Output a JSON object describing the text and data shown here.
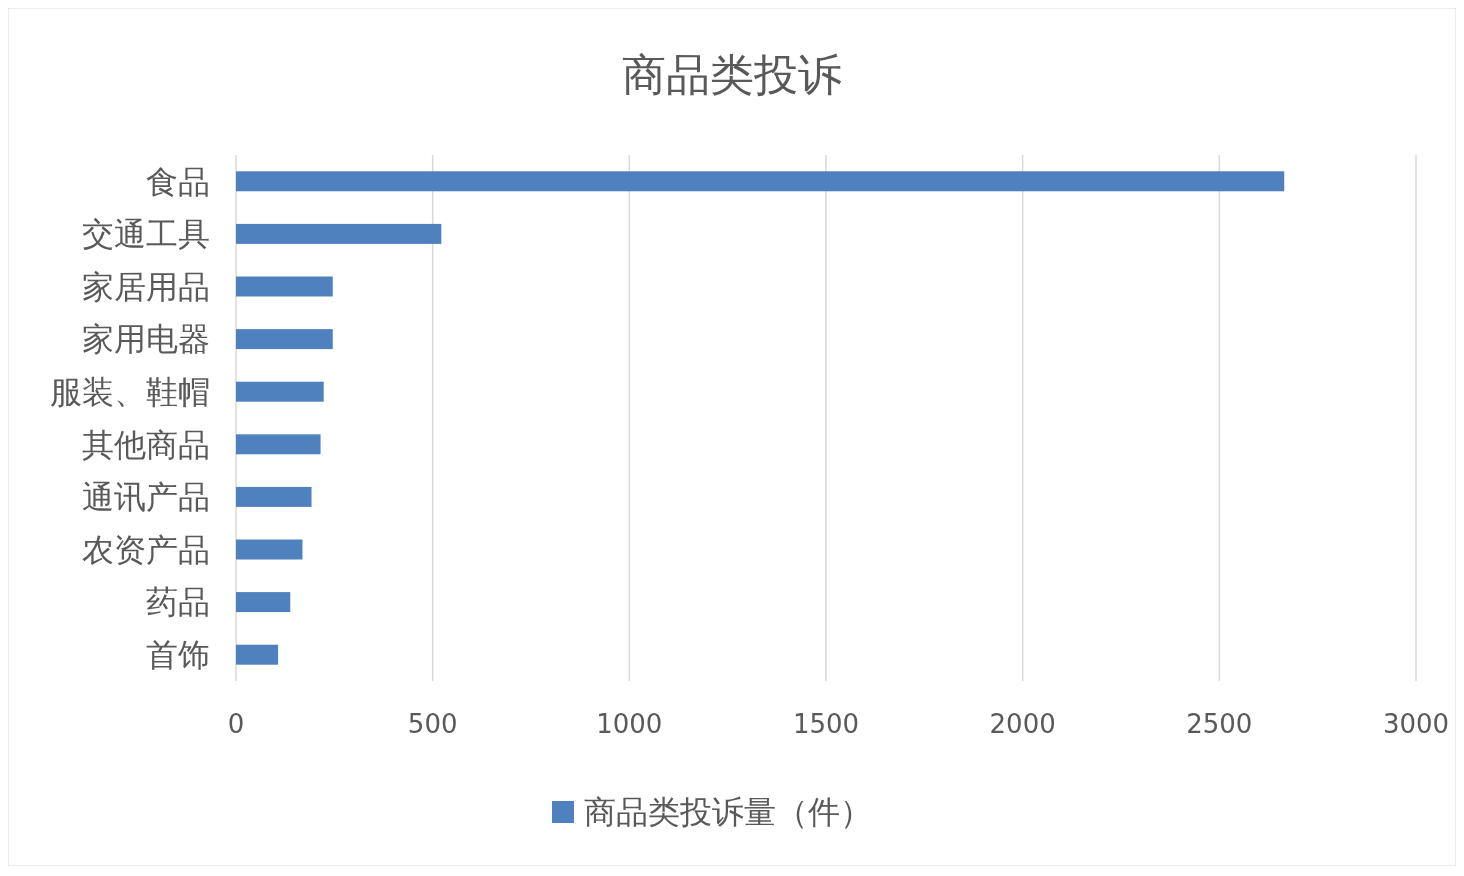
{
  "chart_data": {
    "type": "bar",
    "orientation": "horizontal",
    "title": "商品类投诉",
    "categories": [
      "食品",
      "交通工具",
      "家居用品",
      "家用电器",
      "服装、鞋帽",
      "其他商品",
      "通讯产品",
      "农资产品",
      "药品",
      "首饰"
    ],
    "series": [
      {
        "name": "商品类投诉量（件）",
        "color": "#4e81bd",
        "values": [
          2665,
          522,
          246,
          246,
          223,
          215,
          192,
          169,
          138,
          107
        ]
      }
    ],
    "xlim": [
      0,
      3000
    ],
    "xticks": [
      0,
      500,
      1000,
      1500,
      2000,
      2500,
      3000
    ],
    "grid": "x",
    "legend": "bottom"
  }
}
